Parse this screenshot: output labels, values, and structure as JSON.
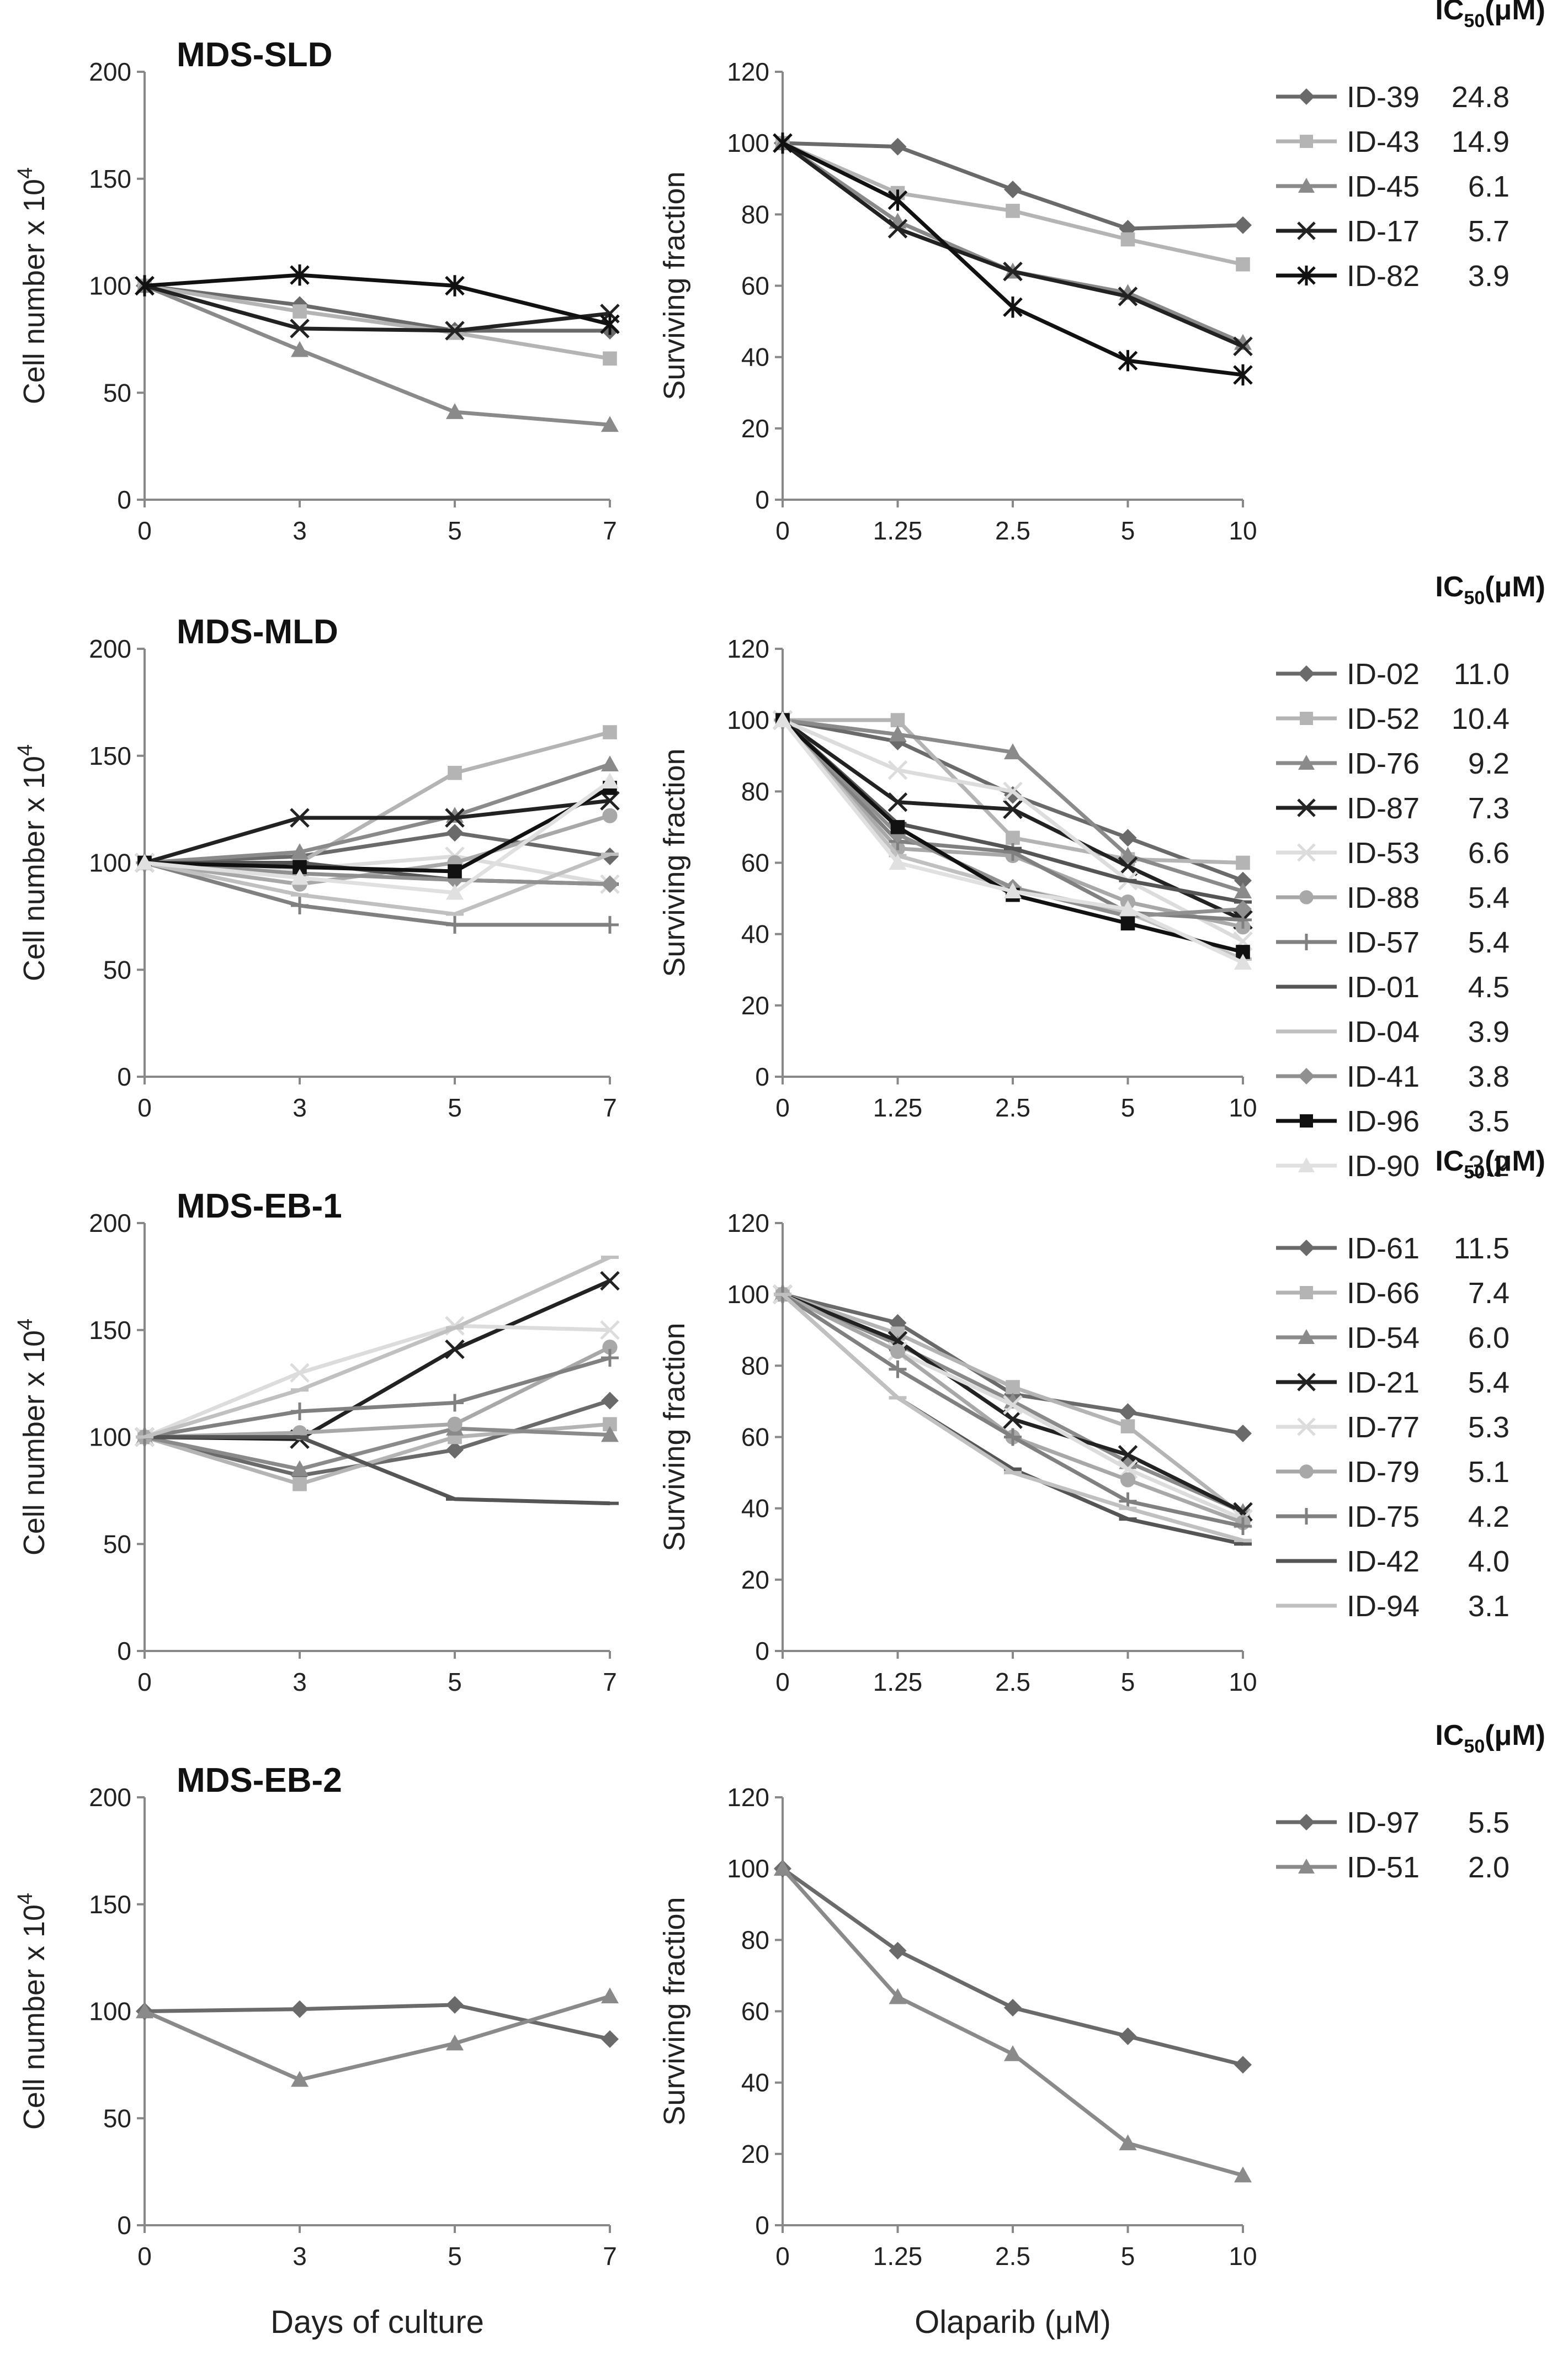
{
  "chart_data": [
    {
      "id": "sld-cells",
      "type": "line",
      "title": "MDS-SLD",
      "ylabel": "Cell number x 10",
      "ylabel_sup": "4",
      "x": [
        "0",
        "3",
        "5",
        "7"
      ],
      "ylim": [
        0,
        200
      ],
      "yticks": [
        0,
        50,
        100,
        150,
        200
      ],
      "series": [
        {
          "name": "ID-39",
          "color": "#6a6a6a",
          "marker": "diamond",
          "values": [
            100,
            91,
            79,
            79
          ]
        },
        {
          "name": "ID-43",
          "color": "#b4b4b4",
          "marker": "square",
          "values": [
            100,
            88,
            78,
            66
          ]
        },
        {
          "name": "ID-45",
          "color": "#8a8a8a",
          "marker": "triangle",
          "values": [
            100,
            70,
            41,
            35
          ]
        },
        {
          "name": "ID-17",
          "color": "#222222",
          "marker": "x",
          "values": [
            100,
            80,
            79,
            87
          ]
        },
        {
          "name": "ID-82",
          "color": "#111111",
          "marker": "star",
          "values": [
            100,
            105,
            100,
            82
          ]
        }
      ]
    },
    {
      "id": "sld-surv",
      "type": "line",
      "ylabel": "Surviving fraction",
      "x": [
        "0",
        "1.25",
        "2.5",
        "5",
        "10"
      ],
      "ylim": [
        0,
        120
      ],
      "yticks": [
        0,
        20,
        40,
        60,
        80,
        100,
        120
      ],
      "ic50_header": "IC",
      "ic50_sub": "50",
      "ic50_unit": "(μM)",
      "series": [
        {
          "name": "ID-39",
          "ic50": "24.8",
          "color": "#6a6a6a",
          "marker": "diamond",
          "values": [
            100,
            99,
            87,
            76,
            77
          ]
        },
        {
          "name": "ID-43",
          "ic50": "14.9",
          "color": "#b4b4b4",
          "marker": "square",
          "values": [
            100,
            86,
            81,
            73,
            66
          ]
        },
        {
          "name": "ID-45",
          "ic50": "6.1",
          "color": "#8a8a8a",
          "marker": "triangle",
          "values": [
            100,
            78,
            64,
            58,
            44
          ]
        },
        {
          "name": "ID-17",
          "ic50": "5.7",
          "color": "#222222",
          "marker": "x",
          "values": [
            100,
            76,
            64,
            57,
            43
          ]
        },
        {
          "name": "ID-82",
          "ic50": "3.9",
          "color": "#111111",
          "marker": "star",
          "values": [
            100,
            84,
            54,
            39,
            35
          ]
        }
      ]
    },
    {
      "id": "mld-cells",
      "type": "line",
      "title": "MDS-MLD",
      "ylabel": "Cell number x 10",
      "ylabel_sup": "4",
      "x": [
        "0",
        "3",
        "5",
        "7"
      ],
      "ylim": [
        0,
        200
      ],
      "yticks": [
        0,
        50,
        100,
        150,
        200
      ],
      "series": [
        {
          "name": "ID-02",
          "color": "#6a6a6a",
          "marker": "diamond",
          "values": [
            100,
            103,
            114,
            103
          ]
        },
        {
          "name": "ID-52",
          "color": "#b4b4b4",
          "marker": "square",
          "values": [
            100,
            100,
            142,
            161
          ]
        },
        {
          "name": "ID-76",
          "color": "#8a8a8a",
          "marker": "triangle",
          "values": [
            100,
            105,
            122,
            146
          ]
        },
        {
          "name": "ID-87",
          "color": "#222222",
          "marker": "x",
          "values": [
            100,
            121,
            121,
            129
          ]
        },
        {
          "name": "ID-53",
          "color": "#dcdcdc",
          "marker": "x",
          "values": [
            100,
            97,
            103,
            90
          ]
        },
        {
          "name": "ID-88",
          "color": "#a8a8a8",
          "marker": "circle",
          "values": [
            100,
            90,
            100,
            122
          ]
        },
        {
          "name": "ID-57",
          "color": "#808080",
          "marker": "plus",
          "values": [
            100,
            80,
            71,
            71
          ]
        },
        {
          "name": "ID-01",
          "color": "#555555",
          "marker": "dash",
          "values": [
            100,
            100,
            92,
            90
          ]
        },
        {
          "name": "ID-04",
          "color": "#c0c0c0",
          "marker": "dash",
          "values": [
            100,
            85,
            76,
            104
          ]
        },
        {
          "name": "ID-41",
          "color": "#909090",
          "marker": "diamond",
          "values": [
            100,
            95,
            92,
            90
          ]
        },
        {
          "name": "ID-96",
          "color": "#111111",
          "marker": "square",
          "values": [
            100,
            98,
            96,
            135
          ]
        },
        {
          "name": "ID-90",
          "color": "#e0e0e0",
          "marker": "triangle",
          "values": [
            100,
            93,
            86,
            138
          ]
        }
      ]
    },
    {
      "id": "mld-surv",
      "type": "line",
      "ylabel": "Surviving fraction",
      "x": [
        "0",
        "1.25",
        "2.5",
        "5",
        "10"
      ],
      "ylim": [
        0,
        120
      ],
      "yticks": [
        0,
        20,
        40,
        60,
        80,
        100,
        120
      ],
      "ic50_header": "IC",
      "ic50_sub": "50",
      "ic50_unit": "(μM)",
      "series": [
        {
          "name": "ID-02",
          "ic50": "11.0",
          "color": "#6a6a6a",
          "marker": "diamond",
          "values": [
            100,
            94,
            79,
            67,
            55
          ]
        },
        {
          "name": "ID-52",
          "ic50": "10.4",
          "color": "#b4b4b4",
          "marker": "square",
          "values": [
            100,
            100,
            67,
            61,
            60
          ]
        },
        {
          "name": "ID-76",
          "ic50": "9.2",
          "color": "#8a8a8a",
          "marker": "triangle",
          "values": [
            100,
            96,
            91,
            62,
            52
          ]
        },
        {
          "name": "ID-87",
          "ic50": "7.3",
          "color": "#222222",
          "marker": "x",
          "values": [
            100,
            77,
            75,
            59,
            44
          ]
        },
        {
          "name": "ID-53",
          "ic50": "6.6",
          "color": "#dcdcdc",
          "marker": "x",
          "values": [
            100,
            86,
            80,
            55,
            38
          ]
        },
        {
          "name": "ID-88",
          "ic50": "5.4",
          "color": "#a8a8a8",
          "marker": "circle",
          "values": [
            100,
            64,
            62,
            49,
            42
          ]
        },
        {
          "name": "ID-57",
          "ic50": "5.4",
          "color": "#808080",
          "marker": "plus",
          "values": [
            100,
            66,
            63,
            46,
            44
          ]
        },
        {
          "name": "ID-01",
          "ic50": "4.5",
          "color": "#555555",
          "marker": "dash",
          "values": [
            100,
            71,
            64,
            55,
            49
          ]
        },
        {
          "name": "ID-04",
          "ic50": "3.9",
          "color": "#c0c0c0",
          "marker": "dash",
          "values": [
            100,
            62,
            53,
            46,
            33
          ]
        },
        {
          "name": "ID-41",
          "ic50": "3.8",
          "color": "#909090",
          "marker": "diamond",
          "values": [
            100,
            68,
            53,
            45,
            47
          ]
        },
        {
          "name": "ID-96",
          "ic50": "3.5",
          "color": "#111111",
          "marker": "square",
          "values": [
            100,
            70,
            51,
            43,
            35
          ]
        },
        {
          "name": "ID-90",
          "ic50": "3.2",
          "color": "#e0e0e0",
          "marker": "triangle",
          "values": [
            100,
            60,
            52,
            47,
            32
          ]
        }
      ]
    },
    {
      "id": "eb1-cells",
      "type": "line",
      "title": "MDS-EB-1",
      "ylabel": "Cell number x 10",
      "ylabel_sup": "4",
      "x": [
        "0",
        "3",
        "5",
        "7"
      ],
      "ylim": [
        0,
        200
      ],
      "yticks": [
        0,
        50,
        100,
        150,
        200
      ],
      "series": [
        {
          "name": "ID-61",
          "color": "#6a6a6a",
          "marker": "diamond",
          "values": [
            100,
            82,
            94,
            117
          ]
        },
        {
          "name": "ID-66",
          "color": "#b4b4b4",
          "marker": "square",
          "values": [
            100,
            78,
            100,
            106
          ]
        },
        {
          "name": "ID-54",
          "color": "#8a8a8a",
          "marker": "triangle",
          "values": [
            100,
            85,
            104,
            101
          ]
        },
        {
          "name": "ID-21",
          "color": "#222222",
          "marker": "x",
          "values": [
            100,
            99,
            141,
            173
          ]
        },
        {
          "name": "ID-77",
          "color": "#dcdcdc",
          "marker": "x",
          "values": [
            100,
            130,
            152,
            150
          ]
        },
        {
          "name": "ID-79",
          "color": "#a8a8a8",
          "marker": "circle",
          "values": [
            100,
            102,
            106,
            142
          ]
        },
        {
          "name": "ID-75",
          "color": "#808080",
          "marker": "plus",
          "values": [
            100,
            112,
            116,
            137
          ]
        },
        {
          "name": "ID-42",
          "color": "#555555",
          "marker": "dash",
          "values": [
            100,
            100,
            71,
            69
          ]
        },
        {
          "name": "ID-94",
          "color": "#c0c0c0",
          "marker": "dash",
          "values": [
            100,
            122,
            151,
            184
          ]
        }
      ]
    },
    {
      "id": "eb1-surv",
      "type": "line",
      "ylabel": "Surviving fraction",
      "x": [
        "0",
        "1.25",
        "2.5",
        "5",
        "10"
      ],
      "ylim": [
        0,
        120
      ],
      "yticks": [
        0,
        20,
        40,
        60,
        80,
        100,
        120
      ],
      "ic50_header": "IC",
      "ic50_sub": "50",
      "ic50_unit": "(μM)",
      "series": [
        {
          "name": "ID-61",
          "ic50": "11.5",
          "color": "#6a6a6a",
          "marker": "diamond",
          "values": [
            100,
            92,
            72,
            67,
            61
          ]
        },
        {
          "name": "ID-66",
          "ic50": "7.4",
          "color": "#b4b4b4",
          "marker": "square",
          "values": [
            100,
            89,
            74,
            63,
            38
          ]
        },
        {
          "name": "ID-54",
          "ic50": "6.0",
          "color": "#8a8a8a",
          "marker": "triangle",
          "values": [
            100,
            86,
            70,
            53,
            39
          ]
        },
        {
          "name": "ID-21",
          "ic50": "5.4",
          "color": "#222222",
          "marker": "x",
          "values": [
            100,
            87,
            65,
            55,
            39
          ]
        },
        {
          "name": "ID-77",
          "ic50": "5.3",
          "color": "#dcdcdc",
          "marker": "x",
          "values": [
            100,
            84,
            69,
            51,
            37
          ]
        },
        {
          "name": "ID-79",
          "ic50": "5.1",
          "color": "#a8a8a8",
          "marker": "circle",
          "values": [
            100,
            84,
            60,
            48,
            36
          ]
        },
        {
          "name": "ID-75",
          "ic50": "4.2",
          "color": "#808080",
          "marker": "plus",
          "values": [
            100,
            79,
            60,
            42,
            35
          ]
        },
        {
          "name": "ID-42",
          "ic50": "4.0",
          "color": "#555555",
          "marker": "dash",
          "values": [
            100,
            71,
            51,
            37,
            30
          ]
        },
        {
          "name": "ID-94",
          "ic50": "3.1",
          "color": "#c0c0c0",
          "marker": "dash",
          "values": [
            100,
            71,
            50,
            40,
            31
          ]
        }
      ]
    },
    {
      "id": "eb2-cells",
      "type": "line",
      "title": "MDS-EB-2",
      "ylabel": "Cell number x 10",
      "ylabel_sup": "4",
      "xlabel": "Days of culture",
      "x": [
        "0",
        "3",
        "5",
        "7"
      ],
      "ylim": [
        0,
        200
      ],
      "yticks": [
        0,
        50,
        100,
        150,
        200
      ],
      "series": [
        {
          "name": "ID-97",
          "color": "#6a6a6a",
          "marker": "diamond",
          "values": [
            100,
            101,
            103,
            87
          ]
        },
        {
          "name": "ID-51",
          "color": "#8a8a8a",
          "marker": "triangle",
          "values": [
            100,
            68,
            85,
            107
          ]
        }
      ]
    },
    {
      "id": "eb2-surv",
      "type": "line",
      "ylabel": "Surviving fraction",
      "xlabel": "Olaparib (μM)",
      "x": [
        "0",
        "1.25",
        "2.5",
        "5",
        "10"
      ],
      "ylim": [
        0,
        120
      ],
      "yticks": [
        0,
        20,
        40,
        60,
        80,
        100,
        120
      ],
      "ic50_header": "IC",
      "ic50_sub": "50",
      "ic50_unit": "(μM)",
      "series": [
        {
          "name": "ID-97",
          "ic50": "5.5",
          "color": "#6a6a6a",
          "marker": "diamond",
          "values": [
            100,
            77,
            61,
            53,
            45
          ]
        },
        {
          "name": "ID-51",
          "ic50": "2.0",
          "color": "#8a8a8a",
          "marker": "triangle",
          "values": [
            100,
            64,
            48,
            23,
            14
          ]
        }
      ]
    }
  ]
}
